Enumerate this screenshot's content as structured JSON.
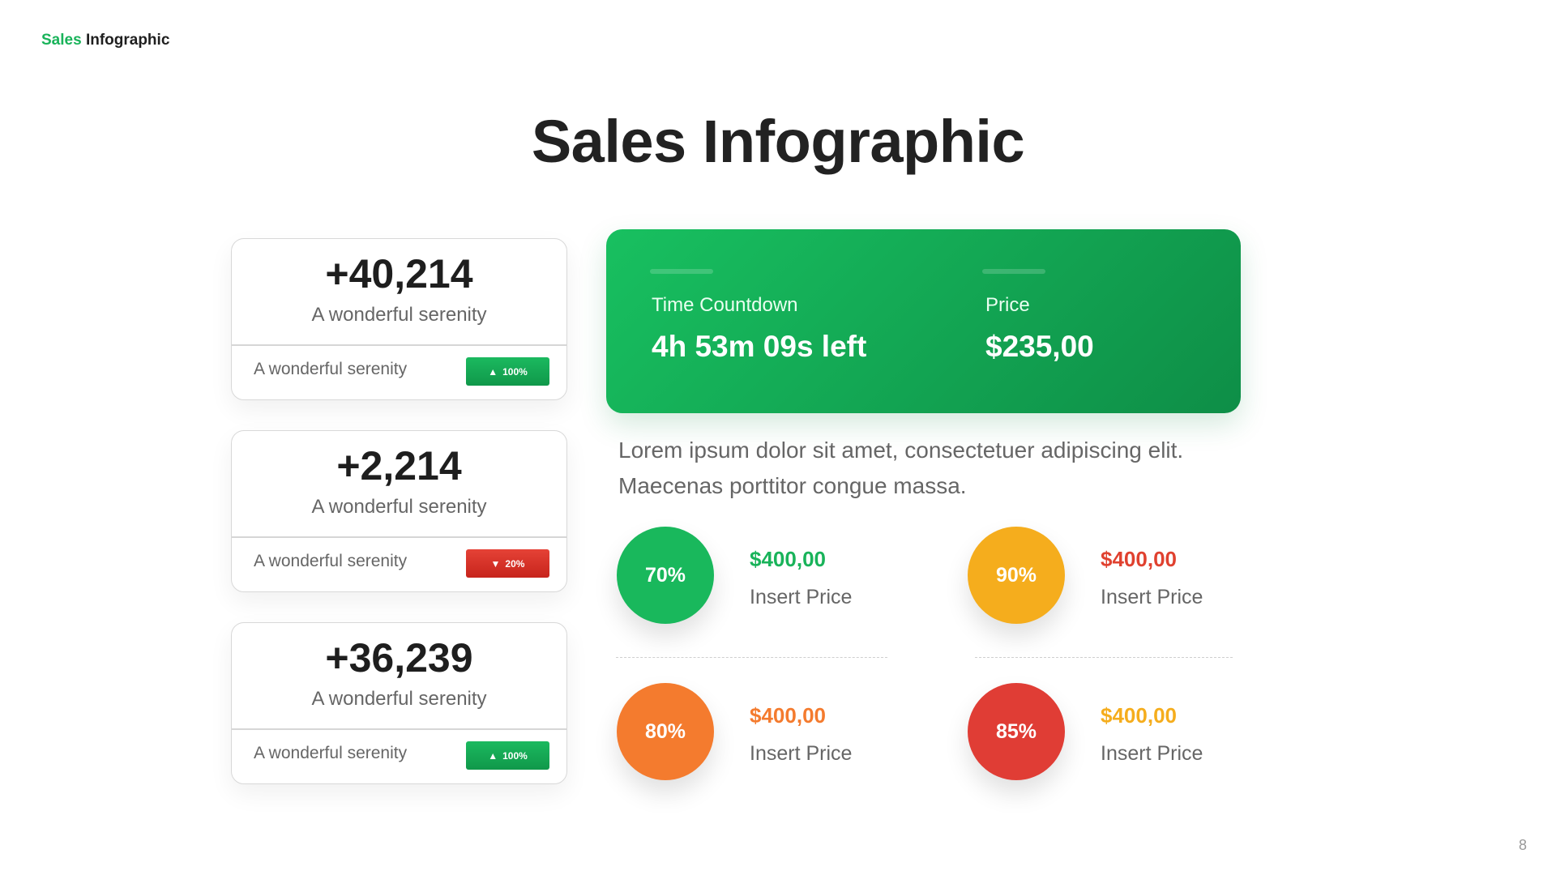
{
  "header": {
    "brand_part1": "Sales",
    "brand_part2": "Infographic"
  },
  "slide": {
    "title": "Sales Infographic",
    "page_number": "8"
  },
  "stats": [
    {
      "value": "+40,214",
      "subtitle": "A wonderful serenity",
      "footer": "A wonderful serenity",
      "badge": "100%",
      "direction": "up",
      "color": "#17a854"
    },
    {
      "value": "+2,214",
      "subtitle": "A wonderful serenity",
      "footer": "A wonderful serenity",
      "badge": "20%",
      "direction": "down",
      "color": "#d9302a"
    },
    {
      "value": "+36,239",
      "subtitle": "A wonderful serenity",
      "footer": "A wonderful serenity",
      "badge": "100%",
      "direction": "up",
      "color": "#17a854"
    }
  ],
  "panel": {
    "countdown_label": "Time Countdown",
    "countdown_value": "4h 53m 09s left",
    "price_label": "Price",
    "price_value": "$235,00",
    "color": "#13b057"
  },
  "description": "Lorem ipsum dolor sit amet, consectetuer adipiscing elit. Maecenas porttitor congue massa.",
  "metrics": [
    {
      "percent": "70%",
      "price": "$400,00",
      "label": "Insert Price",
      "circle_color": "#19b85c",
      "price_color": "#19b35a"
    },
    {
      "percent": "90%",
      "price": "$400,00",
      "label": "Insert Price",
      "circle_color": "#f5ad1d",
      "price_color": "#e0412f"
    },
    {
      "percent": "80%",
      "price": "$400,00",
      "label": "Insert Price",
      "circle_color": "#f47b2e",
      "price_color": "#f47b2e"
    },
    {
      "percent": "85%",
      "price": "$400,00",
      "label": "Insert Price",
      "circle_color": "#e03d35",
      "price_color": "#f5ad1d"
    }
  ]
}
